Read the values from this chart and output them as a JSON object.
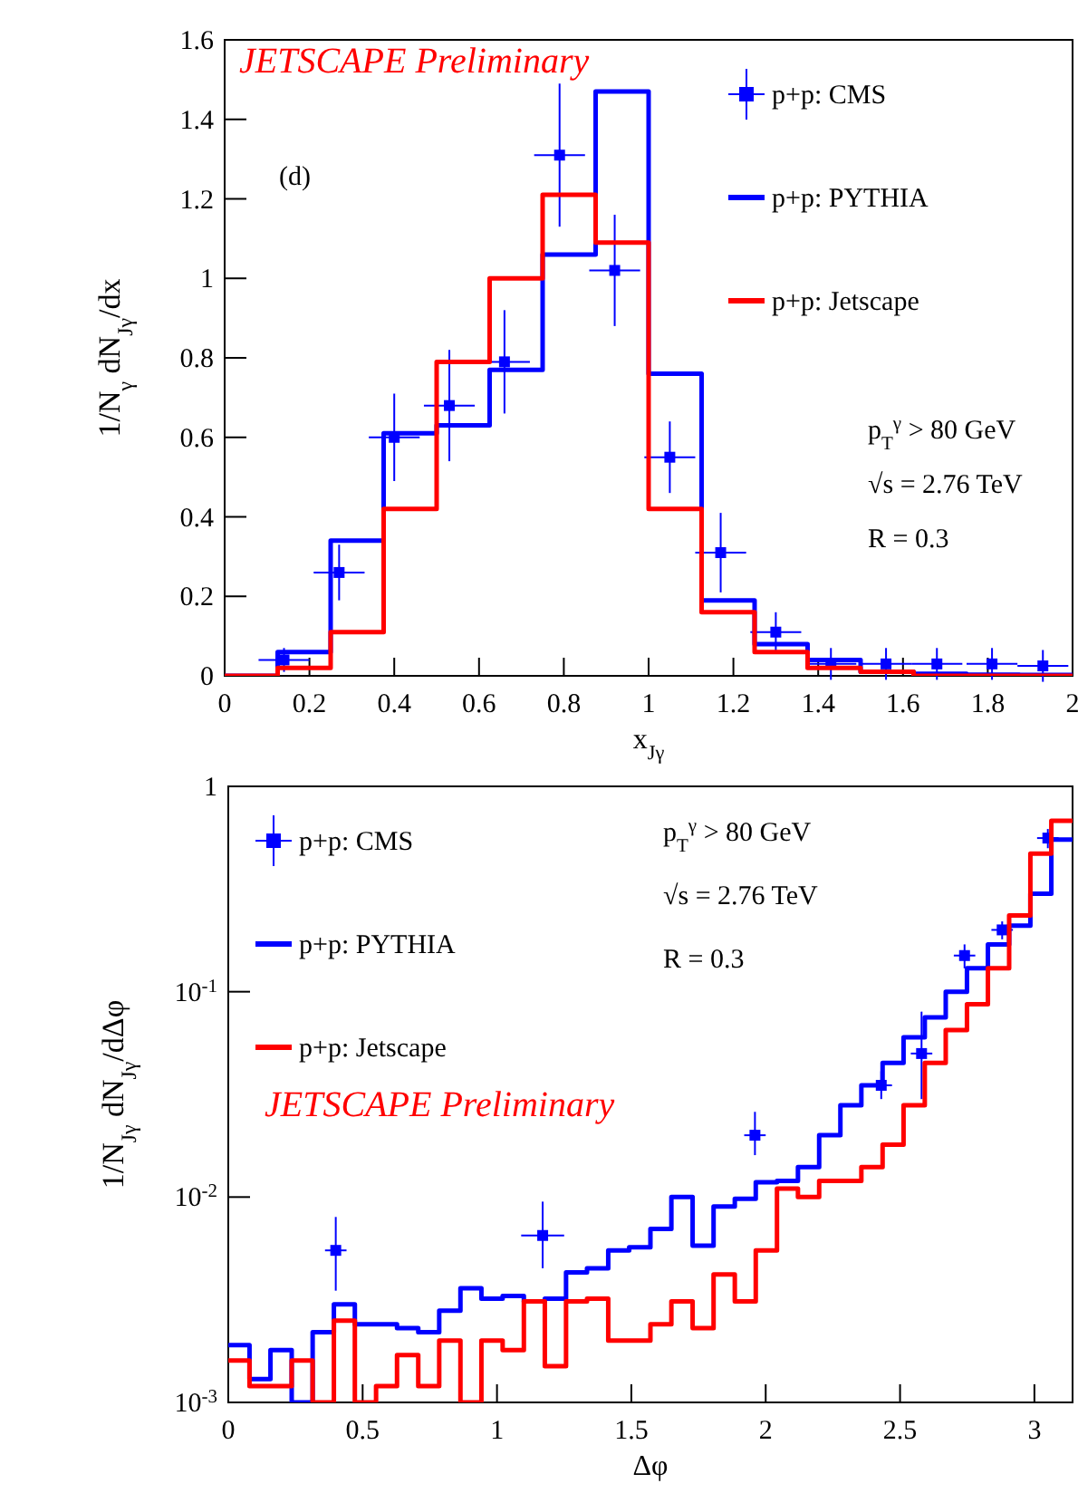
{
  "chart_data": [
    {
      "type": "step",
      "xlabel": "x$_{Jγ}$",
      "ylabel": "1/N$_{γ}$ dN$_{Jγ}$/dx",
      "xlim": [
        0,
        2
      ],
      "ylim": [
        0,
        1.6
      ],
      "xticks": [
        0,
        0.2,
        0.4,
        0.6,
        0.8,
        1,
        1.2,
        1.4,
        1.6,
        1.8,
        2
      ],
      "yticks": [
        0,
        0.2,
        0.4,
        0.6,
        0.8,
        1,
        1.2,
        1.4,
        1.6
      ],
      "legend": "top right",
      "grid": false,
      "annotations": [
        "JETSCAPE Preliminary",
        "(d)",
        "p$_{T}$$^{γ}$ > 80 GeV",
        "√s = 2.76 TeV",
        "R = 0.3"
      ],
      "series": [
        {
          "name": "p+p: CMS",
          "type": "scatter",
          "marker": "square",
          "color": "#0000ff",
          "x": [
            0.14,
            0.27,
            0.4,
            0.53,
            0.66,
            0.79,
            0.92,
            1.05,
            1.17,
            1.3,
            1.43,
            1.56,
            1.68,
            1.81,
            1.93
          ],
          "values": [
            0.04,
            0.26,
            0.6,
            0.68,
            0.79,
            1.31,
            1.02,
            0.55,
            0.31,
            0.11,
            0.03,
            0.03,
            0.03,
            0.03,
            0.025
          ],
          "errors": [
            0.03,
            0.07,
            0.11,
            0.14,
            0.13,
            0.18,
            0.14,
            0.09,
            0.1,
            0.05,
            0.04,
            0.04,
            0.04,
            0.04,
            0.04
          ],
          "xerrors": [
            0.06,
            0.06,
            0.06,
            0.06,
            0.06,
            0.06,
            0.06,
            0.06,
            0.06,
            0.06,
            0.06,
            0.06,
            0.06,
            0.06,
            0.06
          ]
        },
        {
          "name": "p+p: PYTHIA",
          "type": "step",
          "line_style": "solid",
          "color": "#0000ff",
          "x": [
            0,
            0.125,
            0.25,
            0.375,
            0.5,
            0.625,
            0.75,
            0.875,
            1,
            1.125,
            1.25,
            1.375,
            1.5,
            1.625,
            1.75,
            1.875,
            2
          ],
          "values": [
            0,
            0.06,
            0.34,
            0.61,
            0.63,
            0.77,
            1.06,
            1.47,
            0.76,
            0.19,
            0.08,
            0.04,
            0.01,
            0.005,
            0.003,
            0.002,
            0.002
          ]
        },
        {
          "name": "p+p: Jetscape",
          "type": "step",
          "line_style": "solid",
          "color": "#ff0000",
          "x": [
            0,
            0.125,
            0.25,
            0.375,
            0.5,
            0.625,
            0.75,
            0.875,
            1,
            1.125,
            1.25,
            1.375,
            1.5,
            1.625,
            1.75,
            1.875,
            2
          ],
          "values": [
            0,
            0.02,
            0.11,
            0.42,
            0.79,
            1.0,
            1.21,
            1.09,
            0.42,
            0.16,
            0.06,
            0.02,
            0.01,
            0,
            0,
            0,
            0
          ]
        }
      ]
    },
    {
      "type": "step",
      "xlabel": "Δφ",
      "ylabel": "1/N$_{Jγ}$ dN$_{Jγ}$/dΔφ",
      "log": "y",
      "xlim": [
        0,
        3.142
      ],
      "ylim": [
        0.001,
        1
      ],
      "xticks": [
        0,
        0.5,
        1,
        1.5,
        2,
        2.5,
        3
      ],
      "yticks": [
        {
          "value": 0.001,
          "label": "10$^{-3}$"
        },
        {
          "value": 0.01,
          "label": "10$^{-2}$"
        },
        {
          "value": 0.1,
          "label": "10$^{-1}$"
        },
        1
      ],
      "legend": "top left",
      "grid": false,
      "annotations": [
        "JETSCAPE Preliminary",
        "p$_{T}$$^{γ}$ > 80 GeV",
        "√s = 2.76 TeV",
        "R = 0.3"
      ],
      "series": [
        {
          "name": "p+p: CMS",
          "type": "scatter",
          "marker": "square",
          "color": "#0000ff",
          "x": [
            0.4,
            1.17,
            1.96,
            2.43,
            2.58,
            2.74,
            2.88,
            3.05
          ],
          "values": [
            0.0055,
            0.0065,
            0.02,
            0.035,
            0.05,
            0.15,
            0.2,
            0.56
          ],
          "errors": [
            [
              0.0035,
              0.008
            ],
            [
              0.0045,
              0.0095
            ],
            [
              0.016,
              0.026
            ],
            [
              0.03,
              0.041
            ],
            [
              0.03,
              0.08
            ],
            [
              0.13,
              0.17
            ],
            [
              0.18,
              0.22
            ],
            [
              0.5,
              0.62
            ]
          ],
          "xerrors": [
            0.04,
            0.08,
            0.04,
            0.04,
            0.04,
            0.04,
            0.04,
            0.04
          ]
        },
        {
          "name": "p+p: PYTHIA",
          "type": "step",
          "line_style": "solid",
          "color": "#0000ff",
          "x": [
            0,
            0.079,
            0.157,
            0.236,
            0.314,
            0.393,
            0.471,
            0.55,
            0.628,
            0.707,
            0.785,
            0.864,
            0.942,
            1.021,
            1.1,
            1.178,
            1.257,
            1.335,
            1.414,
            1.492,
            1.571,
            1.649,
            1.728,
            1.806,
            1.885,
            1.963,
            2.042,
            2.12,
            2.199,
            2.278,
            2.356,
            2.435,
            2.513,
            2.592,
            2.67,
            2.749,
            2.827,
            2.906,
            2.985,
            3.063,
            3.142
          ],
          "values": [
            0.0019,
            0.0013,
            0.0018,
            0.001,
            0.0022,
            0.003,
            0.0024,
            0.0024,
            0.0023,
            0.0022,
            0.0028,
            0.0036,
            0.0032,
            0.0033,
            0.0031,
            0.0032,
            0.0043,
            0.0045,
            0.0055,
            0.0057,
            0.007,
            0.01,
            0.0058,
            0.009,
            0.0098,
            0.0118,
            0.012,
            0.014,
            0.02,
            0.028,
            0.035,
            0.045,
            0.06,
            0.075,
            0.1,
            0.13,
            0.17,
            0.21,
            0.3,
            0.55,
            0.55
          ]
        },
        {
          "name": "p+p: Jetscape",
          "type": "step",
          "line_style": "solid",
          "color": "#ff0000",
          "x": [
            0,
            0.079,
            0.157,
            0.236,
            0.314,
            0.393,
            0.471,
            0.55,
            0.628,
            0.707,
            0.785,
            0.864,
            0.942,
            1.021,
            1.1,
            1.178,
            1.257,
            1.335,
            1.414,
            1.492,
            1.571,
            1.649,
            1.728,
            1.806,
            1.885,
            1.963,
            2.042,
            2.12,
            2.199,
            2.278,
            2.356,
            2.435,
            2.513,
            2.592,
            2.67,
            2.749,
            2.827,
            2.906,
            2.985,
            3.063,
            3.142
          ],
          "values": [
            0.0016,
            0.0012,
            0.0012,
            0.0016,
            0.001,
            0.0025,
            0.001,
            0.0012,
            0.0017,
            0.0012,
            0.002,
            0.001,
            0.002,
            0.0018,
            0.0031,
            0.0015,
            0.0031,
            0.0032,
            0.002,
            0.002,
            0.0024,
            0.0031,
            0.0023,
            0.0042,
            0.0031,
            0.0055,
            0.011,
            0.01,
            0.012,
            0.012,
            0.014,
            0.018,
            0.028,
            0.045,
            0.065,
            0.087,
            0.13,
            0.235,
            0.47,
            0.68,
            0.68
          ]
        }
      ]
    }
  ]
}
